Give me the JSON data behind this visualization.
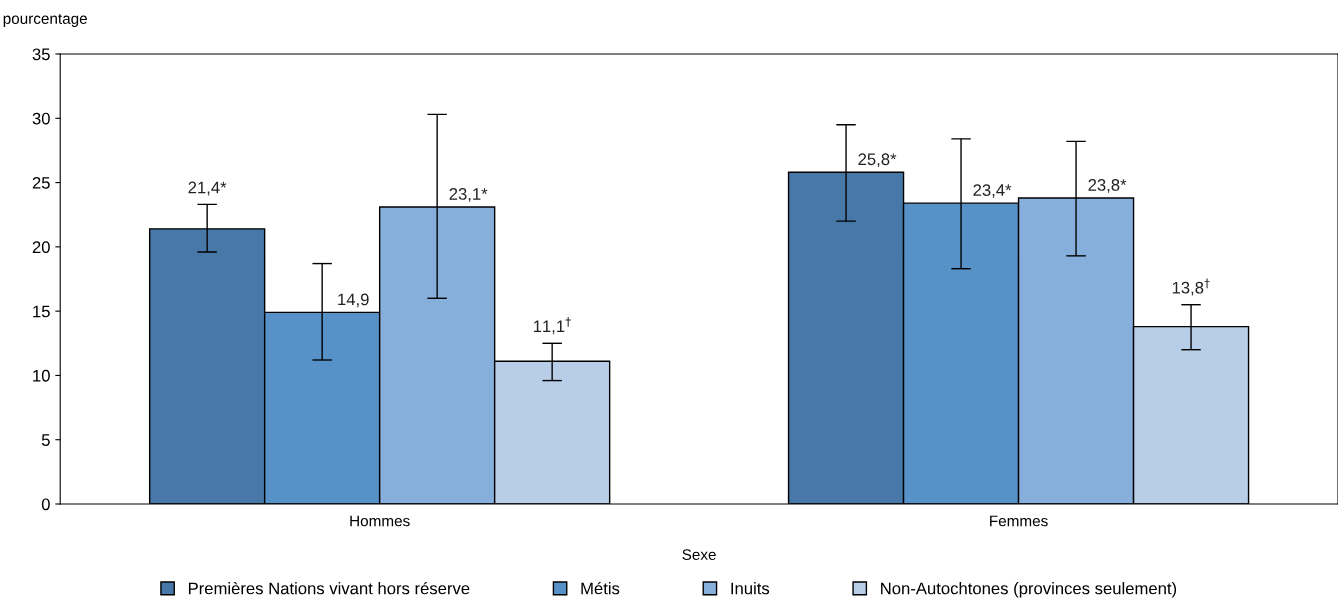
{
  "chart_data": {
    "type": "bar",
    "ylabel": "pourcentage",
    "xlabel": "Sexe",
    "categories": [
      "Hommes",
      "Femmes"
    ],
    "series": [
      {
        "name": "Premières Nations vivant hors réserve",
        "color": "#4778a8",
        "values": [
          21.4,
          25.8
        ],
        "errors": [
          [
            19.6,
            23.3
          ],
          [
            22.0,
            29.5
          ]
        ],
        "value_labels": [
          "21,4*",
          "25,8*"
        ]
      },
      {
        "name": "Métis",
        "color": "#5692c8",
        "values": [
          14.9,
          23.4
        ],
        "errors": [
          [
            11.2,
            18.7
          ],
          [
            18.3,
            28.4
          ]
        ],
        "value_labels": [
          "14,9",
          "23,4*"
        ]
      },
      {
        "name": "Inuits",
        "color": "#87afdc",
        "values": [
          23.1,
          23.8
        ],
        "errors": [
          [
            16.0,
            30.3
          ],
          [
            19.3,
            28.2
          ]
        ],
        "value_labels": [
          "23,1*",
          "23,8*"
        ]
      },
      {
        "name": "Non-Autochtones (provinces seulement)",
        "color": "#b8cde8",
        "values": [
          11.1,
          13.8
        ],
        "errors": [
          [
            9.6,
            12.5
          ],
          [
            12.0,
            15.5
          ]
        ],
        "value_labels": [
          "11,1$^{†}$",
          "13,8$^{†}$"
        ]
      }
    ],
    "ylim": [
      0,
      35
    ],
    "yticks": [
      0,
      5,
      10,
      15,
      20,
      25,
      30,
      35
    ],
    "grid": false,
    "legend": "bottom"
  }
}
